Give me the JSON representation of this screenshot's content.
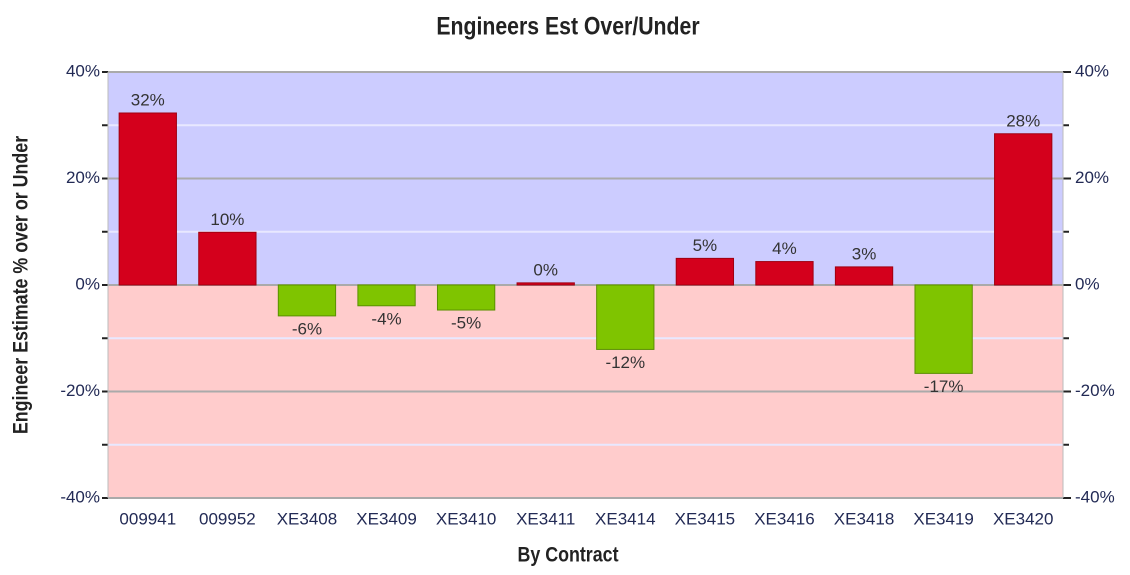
{
  "chart_data": {
    "type": "bar",
    "title": "Engineers Est Over/Under",
    "x_label": "By Contract",
    "y_label": "Engineer Estimate % over or Under",
    "categories": [
      "009941",
      "009952",
      "XE3408",
      "XE3409",
      "XE3410",
      "XE3411",
      "XE3414",
      "XE3415",
      "XE3416",
      "XE3418",
      "XE3419",
      "XE3420"
    ],
    "values": [
      32.3,
      9.9,
      -5.8,
      -3.9,
      -4.7,
      0.4,
      -12.1,
      5,
      4.4,
      3.4,
      -16.6,
      28.4
    ],
    "value_labels": [
      "32%",
      "10%",
      "-6%",
      "-4%",
      "-5%",
      "0%",
      "-12%",
      "5%",
      "4%",
      "3%",
      "-17%",
      "28%"
    ],
    "positive_color": "#d4001c",
    "negative_color": "#7fc400",
    "positive_background": "#ccccff",
    "negative_background": "#ffcccc",
    "ylim": [
      -40,
      40
    ],
    "yticks": [
      {
        "value": -40,
        "label": "-40%"
      },
      {
        "value": -20,
        "label": "-20%"
      },
      {
        "value": 0,
        "label": "0%"
      },
      {
        "value": 20,
        "label": "20%"
      },
      {
        "value": 40,
        "label": "40%"
      }
    ],
    "minor_yticks": [
      -30,
      -10,
      10,
      30
    ],
    "y2lim": [
      -40,
      40
    ],
    "y2ticks": [
      {
        "value": -40,
        "label": "-40%"
      },
      {
        "value": -20,
        "label": "-20%"
      },
      {
        "value": 0,
        "label": "0%"
      },
      {
        "value": 20,
        "label": "20%"
      },
      {
        "value": 40,
        "label": "40%"
      }
    ],
    "grid": true
  }
}
